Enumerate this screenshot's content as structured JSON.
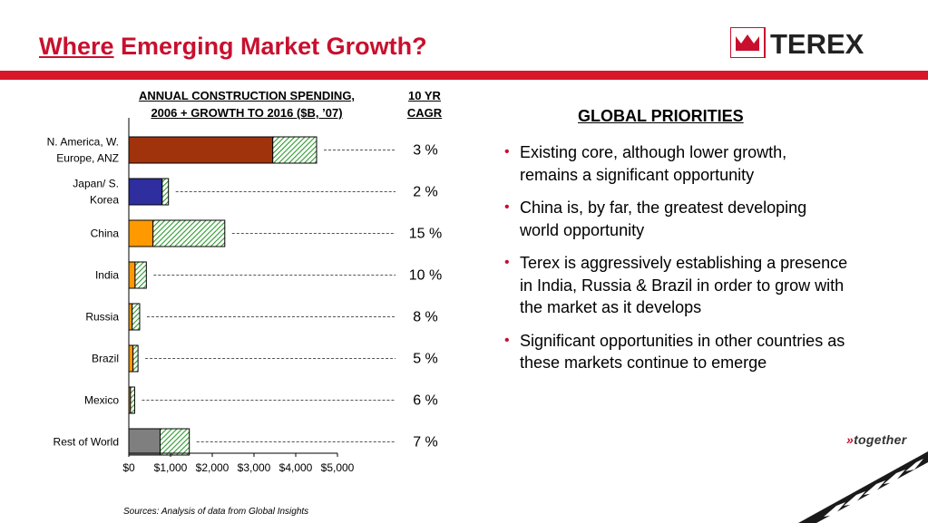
{
  "slide": {
    "title_underlined": "Where",
    "title_rest": " Emerging Market Growth?",
    "logo_text": "TEREX",
    "chart_heading_line1": "ANNUAL CONSTRUCTION SPENDING,",
    "chart_heading_line2": "2006 + GROWTH TO 2016 ($B, ’07)",
    "cagr_heading_line1": "10 YR",
    "cagr_heading_line2": "CAGR",
    "source": "Sources: Analysis of data from Global Insights",
    "priorities_title": "GLOBAL PRIORITIES",
    "bullets": [
      "Existing core, although lower growth, remains a significant opportunity",
      "China is, by far, the greatest developing world opportunity",
      "Terex is aggressively establishing a presence in India, Russia & Brazil in order to grow with the market as it develops",
      "Significant opportunities in other countries as these markets continue to emerge"
    ],
    "tagline": "together"
  },
  "chart_data": {
    "type": "bar",
    "orientation": "horizontal",
    "stacked": true,
    "categories": [
      [
        "N. America, W.",
        "Europe, ANZ"
      ],
      [
        "Japan/ S.",
        "Korea"
      ],
      [
        "China"
      ],
      [
        "India"
      ],
      [
        "Russia"
      ],
      [
        "Brazil"
      ],
      [
        "Mexico"
      ],
      [
        "Rest of World"
      ]
    ],
    "series": [
      {
        "values": [
          3450,
          800,
          580,
          150,
          80,
          100,
          40,
          750
        ],
        "colors": [
          "#a0320c",
          "#2e2e9e",
          "#ff9900",
          "#ff9900",
          "#ff9900",
          "#ff9900",
          "#ff9900",
          "#7f7f7f"
        ]
      },
      {
        "values": [
          1050,
          150,
          1720,
          270,
          180,
          120,
          100,
          700
        ],
        "pattern": "green-hatch"
      }
    ],
    "cagr": [
      "3 %",
      "2 %",
      "15 %",
      "10 %",
      "8 %",
      "5 %",
      "6 %",
      "7 %"
    ],
    "xlim": [
      0,
      5000
    ],
    "xticks": [
      "$0",
      "$1,000",
      "$2,000",
      "$3,000",
      "$4,000",
      "$5,000"
    ],
    "grid": false
  }
}
